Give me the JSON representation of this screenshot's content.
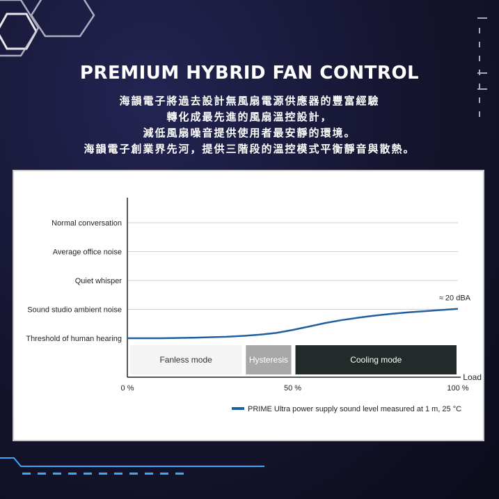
{
  "header": {
    "title": "PREMIUM HYBRID FAN CONTROL",
    "subtitle_lines": [
      "海韻電子將過去設計無風扇電源供應器的豐富經驗",
      "轉化成最先進的風扇溫控設計，",
      "減低風扇噪音提供使用者最安靜的環境。",
      "海韻電子創業界先河，提供三階段的溫控模式平衡靜音與散熱。"
    ]
  },
  "chart_data": {
    "type": "line",
    "xlabel": "Load",
    "x_tick_labels": [
      "0 %",
      "50 %",
      "100 %"
    ],
    "xlim": [
      0,
      100
    ],
    "y_categories": [
      "Threshold of human hearing",
      "Sound studio ambient noise",
      "Quiet whisper",
      "Average office noise",
      "Normal conversation"
    ],
    "grid": true,
    "series": [
      {
        "name": "PRIME Ultra power supply sound level measured at 1 m, 25 °C",
        "color": "#1f5fa0",
        "x": [
          0,
          10,
          20,
          30,
          35,
          40,
          45,
          50,
          55,
          60,
          65,
          70,
          75,
          80,
          85,
          90,
          95,
          100
        ],
        "y": [
          0.0,
          0.0,
          0.02,
          0.05,
          0.08,
          0.12,
          0.18,
          0.28,
          0.4,
          0.52,
          0.62,
          0.7,
          0.77,
          0.83,
          0.88,
          0.92,
          0.96,
          1.0
        ]
      }
    ],
    "annotation": "≈ 20 dBA",
    "modes": [
      {
        "label": "Fanless mode",
        "x_start": 0,
        "x_end": 35,
        "color": "#f4f4f4",
        "text_color": "#333333"
      },
      {
        "label": "Hysteresis",
        "x_start": 35,
        "x_end": 50,
        "color": "#a8a8a8",
        "text_color": "#ffffff"
      },
      {
        "label": "Cooling mode",
        "x_start": 50,
        "x_end": 100,
        "color": "#222a2a",
        "text_color": "#ffffff"
      }
    ],
    "legend_position": "bottom-right"
  }
}
